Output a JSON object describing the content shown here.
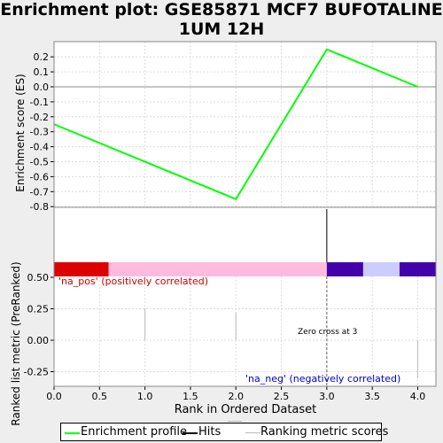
{
  "title_lines": [
    "Enrichment plot: GSE85871 MCF7 BUFOTALINE",
    "1UM 12H"
  ],
  "colors": {
    "es_line": "#00ff00",
    "hits": "#000000",
    "ranking": "#bbbbbb",
    "pos_bar": "#dd0000",
    "pos_light": "#ffbbdd",
    "neg_dark": "#4400aa",
    "neg_light": "#ccccff",
    "pos_label": "#cc0000",
    "neg_label": "#0000cc",
    "grid": "#dddddd"
  },
  "chart_data": [
    {
      "type": "line",
      "ylabel": "Enrichment score (ES)",
      "ylim": [
        -0.8,
        0.3
      ],
      "xlim": [
        0,
        4.2
      ],
      "yticks": [
        0.2,
        0.1,
        0.0,
        -0.1,
        -0.2,
        -0.3,
        -0.4,
        -0.5,
        -0.6,
        -0.7,
        -0.8
      ],
      "ytick_labels": [
        "0.2",
        "0.1",
        "0.0",
        "-0.1",
        "-0.2",
        "-0.3",
        "-0.4",
        "-0.5",
        "-0.6",
        "-0.7",
        "-0.8"
      ],
      "grid": true,
      "series": [
        {
          "name": "Enrichment profile",
          "x": [
            0,
            2,
            3,
            4
          ],
          "y": [
            -0.25,
            -0.75,
            0.25,
            0.0
          ]
        }
      ],
      "hits_x": [
        3
      ]
    },
    {
      "type": "bar",
      "xlabel": "Rank in Ordered Dataset",
      "ylabel": "Ranked list metric (PreRanked)",
      "xlim": [
        0,
        4.2
      ],
      "ylim": [
        -0.3,
        0.5
      ],
      "xticks": [
        0.0,
        0.5,
        1.0,
        1.5,
        2.0,
        2.5,
        3.0,
        3.5,
        4.0
      ],
      "xtick_labels": [
        "0.0",
        "0.5",
        "1.0",
        "1.5",
        "2.0",
        "2.5",
        "3.0",
        "3.5",
        "4.0"
      ],
      "yticks": [
        0.5,
        0.25,
        0.0,
        -0.25
      ],
      "ytick_labels": [
        "0.50",
        "0.25",
        "0.00",
        "-0.25"
      ],
      "grid": true,
      "series": [
        {
          "name": "Ranking metric scores",
          "x": [
            1,
            2,
            4
          ],
          "y": [
            0.25,
            0.22,
            -0.3
          ]
        }
      ],
      "heat_segments": [
        {
          "x0": 0.0,
          "x1": 0.6,
          "color": "pos_bar"
        },
        {
          "x0": 0.6,
          "x1": 3.0,
          "color": "pos_light"
        },
        {
          "x0": 3.0,
          "x1": 3.4,
          "color": "neg_dark"
        },
        {
          "x0": 3.4,
          "x1": 3.8,
          "color": "neg_light"
        },
        {
          "x0": 3.8,
          "x1": 4.2,
          "color": "neg_dark"
        }
      ],
      "zero_cross_x": 3,
      "annotations": {
        "pos": "'na_pos' (positively correlated)",
        "neg": "'na_neg' (negatively correlated)",
        "zero_cross": "Zero cross at 3"
      }
    }
  ],
  "legend": [
    {
      "label": "Enrichment profile",
      "color": "es_line"
    },
    {
      "label": "Hits",
      "color": "hits"
    },
    {
      "label": "Ranking metric scores",
      "color": "ranking"
    }
  ]
}
